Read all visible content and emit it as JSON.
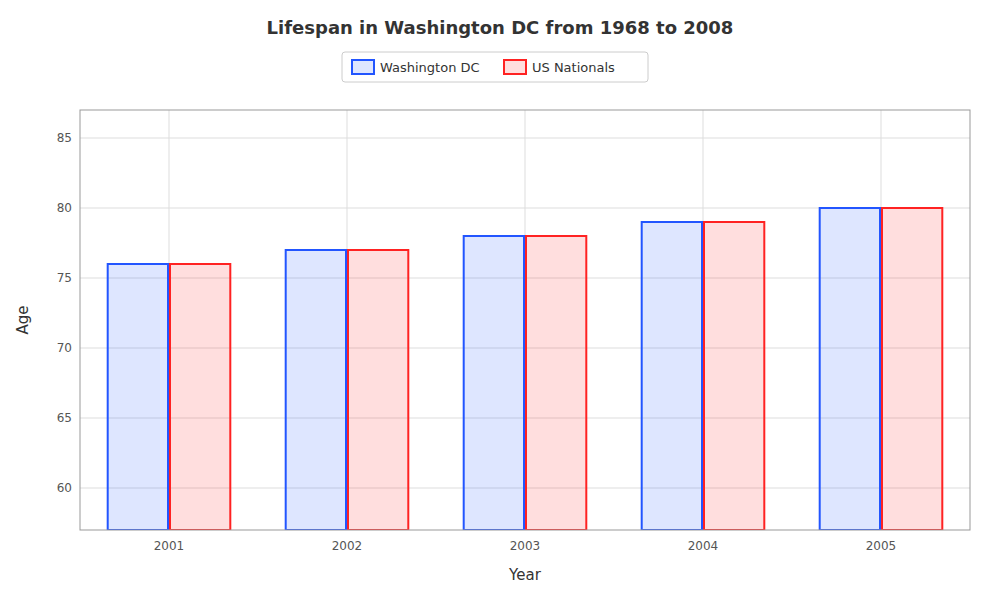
{
  "chart_data": {
    "type": "bar",
    "title": "Lifespan in Washington DC from 1968 to 2008",
    "x_label": "Year",
    "y_label": "Age",
    "categories": [
      "2001",
      "2002",
      "2003",
      "2004",
      "2005"
    ],
    "series": [
      {
        "name": "Washington DC",
        "color": "#2255ff",
        "values": [
          76,
          77,
          78,
          79,
          80
        ]
      },
      {
        "name": "US Nationals",
        "color": "#ff2222",
        "values": [
          76,
          77,
          78,
          79,
          80
        ]
      }
    ],
    "ylim": [
      57,
      87
    ],
    "yticks": [
      60,
      65,
      70,
      75,
      80,
      85
    ],
    "grid": true,
    "legend": "top"
  }
}
